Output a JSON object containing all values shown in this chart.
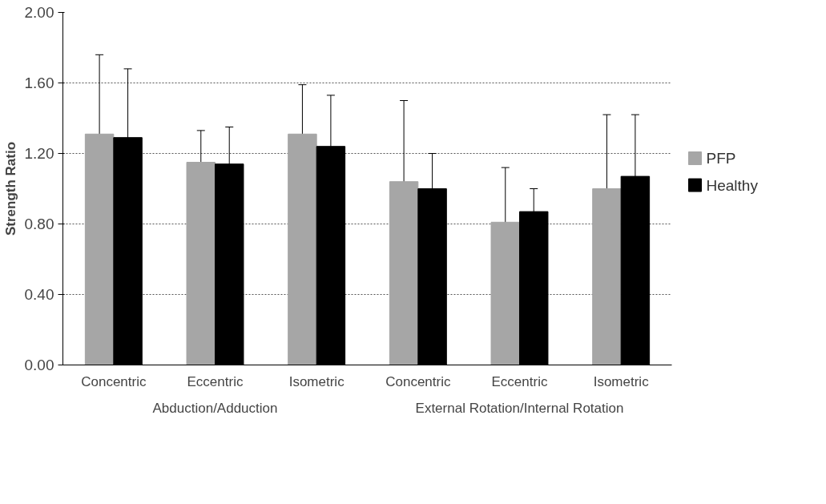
{
  "chart_data": {
    "type": "bar",
    "ylabel": "Strength Ratio",
    "categories": [
      "Concentric",
      "Eccentric",
      "Isometric",
      "Concentric",
      "Eccentric",
      "Isometric"
    ],
    "annotations": [
      "Abduction/Adduction",
      "External Rotation/Internal Rotation"
    ],
    "series": [
      {
        "name": "PFP",
        "color": "#a6a6a6",
        "values": [
          1.31,
          1.15,
          1.31,
          1.04,
          0.81,
          1.0
        ],
        "errors": [
          0.45,
          0.18,
          0.28,
          0.46,
          0.31,
          0.42
        ]
      },
      {
        "name": "Healthy",
        "color": "#000000",
        "values": [
          1.29,
          1.14,
          1.24,
          1.0,
          0.87,
          1.07
        ],
        "errors": [
          0.39,
          0.21,
          0.29,
          0.2,
          0.13,
          0.35
        ]
      }
    ],
    "ylim": [
      0,
      2
    ],
    "yticks": [
      {
        "value": 0,
        "label": "0.00"
      },
      {
        "value": 0.4,
        "label": "0.40"
      },
      {
        "value": 0.8,
        "label": "0.80"
      },
      {
        "value": 1.2,
        "label": "1.20"
      },
      {
        "value": 1.6,
        "label": "1.60"
      },
      {
        "value": 2,
        "label": "2.00"
      }
    ],
    "grid": "y",
    "legend": "right"
  }
}
